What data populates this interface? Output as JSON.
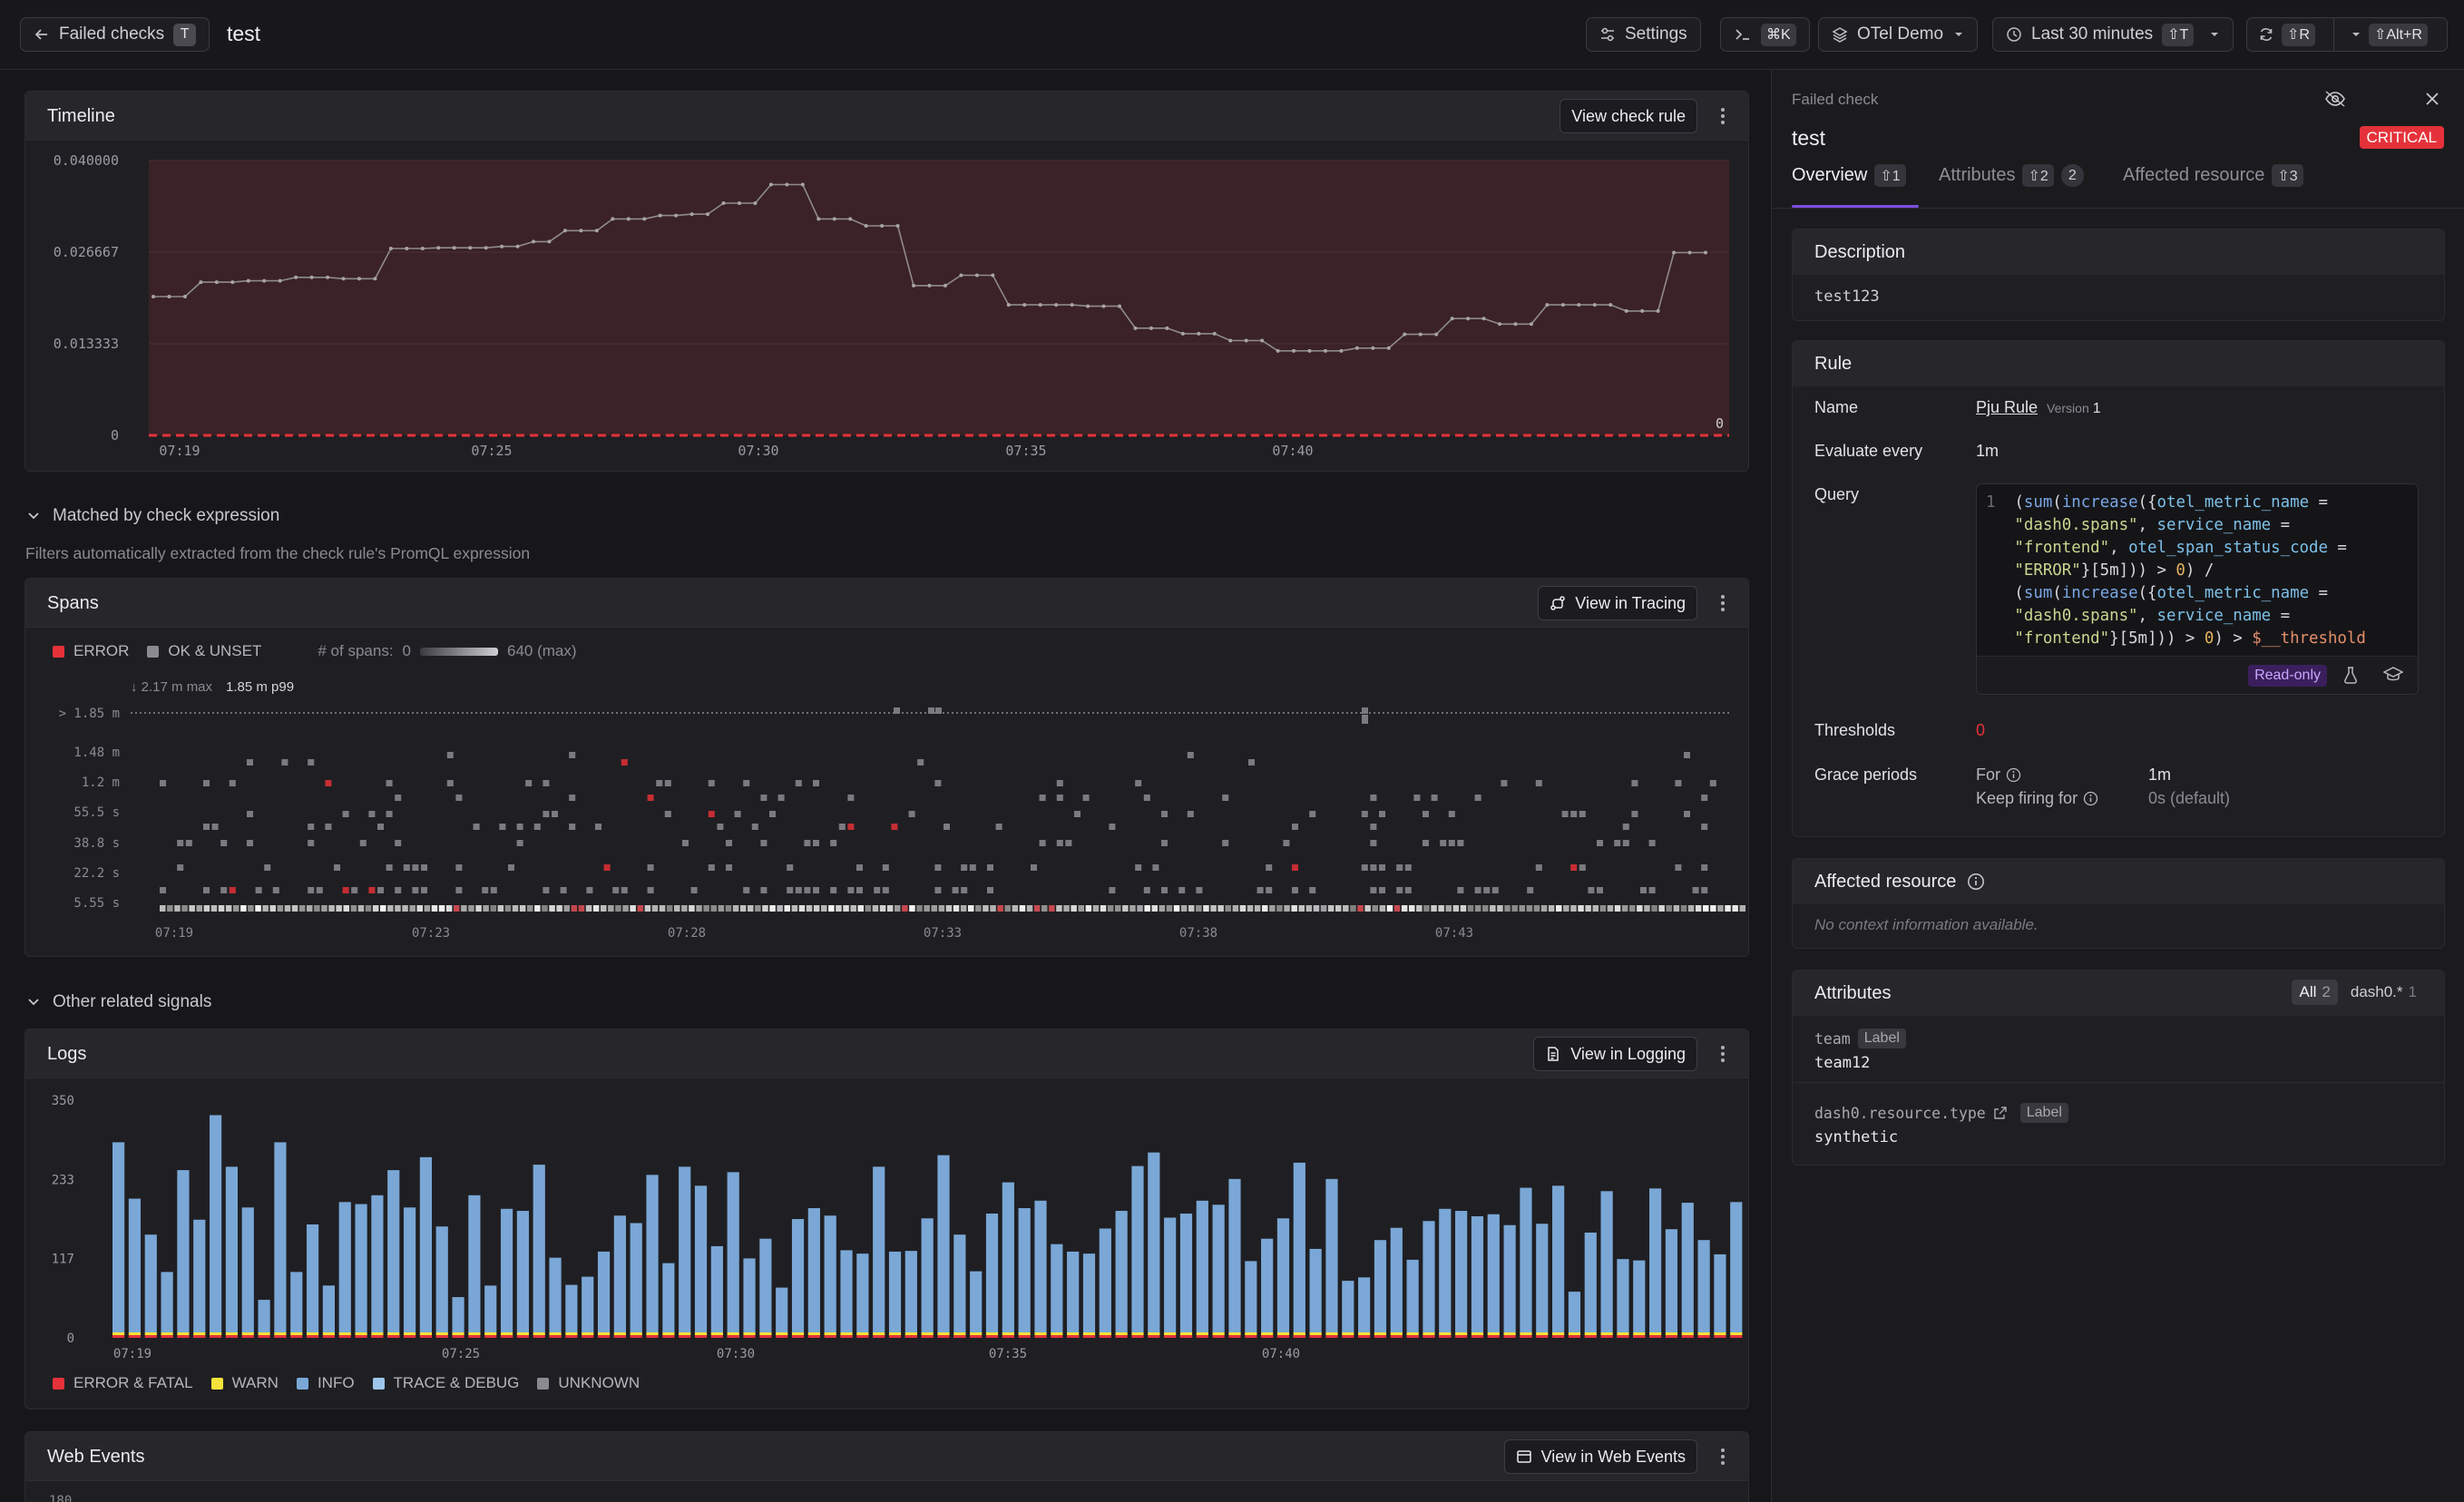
{
  "topbar": {
    "back_label": "Failed checks",
    "back_shortcut": "T",
    "page_title": "test",
    "settings_label": "Settings",
    "command_shortcut": "⌘K",
    "dataset_label": "OTel Demo",
    "time_range_label": "Last 30 minutes",
    "time_range_shortcut": "⇧T",
    "refresh_shortcut": "⇧R",
    "auto_refresh_shortcut": "⇧Alt+R"
  },
  "timeline": {
    "title": "Timeline",
    "button_label": "View check rule",
    "threshold_label": "0",
    "chart_data": {
      "type": "line",
      "title": "Timeline",
      "x_ticks": [
        "07:19",
        "07:25",
        "07:30",
        "07:35",
        "07:40"
      ],
      "y_ticks": [
        "0.040000",
        "0.026667",
        "0.013333",
        "0"
      ],
      "ylim": [
        0,
        0.04
      ],
      "threshold": 0,
      "series": [
        {
          "values": [
            0.0202,
            0.0202,
            0.0202,
            0.0223,
            0.0223,
            0.0223,
            0.0225,
            0.0225,
            0.0225,
            0.023,
            0.023,
            0.023,
            0.0228,
            0.0228,
            0.0228,
            0.0272,
            0.0272,
            0.0272,
            0.0273,
            0.0273,
            0.0273,
            0.0273,
            0.0275,
            0.0275,
            0.0282,
            0.0282,
            0.0298,
            0.0298,
            0.0298,
            0.0315,
            0.0315,
            0.0315,
            0.032,
            0.032,
            0.0322,
            0.0322,
            0.0338,
            0.0338,
            0.0338,
            0.0365,
            0.0365,
            0.0365,
            0.0315,
            0.0315,
            0.0315,
            0.0305,
            0.0305,
            0.0305,
            0.0218,
            0.0218,
            0.0218,
            0.0233,
            0.0233,
            0.0233,
            0.019,
            0.019,
            0.019,
            0.019,
            0.019,
            0.0188,
            0.0188,
            0.0188,
            0.0156,
            0.0156,
            0.0156,
            0.0148,
            0.0148,
            0.0148,
            0.0138,
            0.0138,
            0.0138,
            0.0123,
            0.0123,
            0.0123,
            0.0123,
            0.0123,
            0.0127,
            0.0127,
            0.0127,
            0.0147,
            0.0147,
            0.0147,
            0.017,
            0.017,
            0.017,
            0.0162,
            0.0162,
            0.0162,
            0.019,
            0.019,
            0.019,
            0.019,
            0.019,
            0.0181,
            0.0181,
            0.0181,
            0.0266,
            0.0266,
            0.0266
          ]
        }
      ]
    }
  },
  "matched": {
    "title": "Matched by check expression",
    "subtitle": "Filters automatically extracted from the check rule's PromQL expression"
  },
  "spans": {
    "title": "Spans",
    "button_label": "View in Tracing",
    "legend_error": "ERROR",
    "legend_ok": "OK & UNSET",
    "count_label": "# of spans:",
    "count_min": "0",
    "count_max": "640 (max)",
    "max_label": "↓ 2.17 m max",
    "p99_label": "1.85 m p99",
    "chart_data": {
      "type": "heatmap",
      "title": "Spans",
      "y_ticks": [
        "> 1.85 m",
        "1.48 m",
        "1.2 m",
        "55.5 s",
        "38.8 s",
        "22.2 s",
        "5.55 s"
      ],
      "x_ticks": [
        "07:19",
        "07:23",
        "07:28",
        "07:33",
        "07:38",
        "07:43"
      ],
      "series": [
        {
          "name": "ERROR"
        },
        {
          "name": "OK & UNSET"
        }
      ]
    }
  },
  "other": {
    "title": "Other related signals"
  },
  "logs": {
    "title": "Logs",
    "button_label": "View in Logging",
    "legend": [
      "ERROR & FATAL",
      "WARN",
      "INFO",
      "TRACE & DEBUG",
      "UNKNOWN"
    ],
    "colors": {
      "error": "#e5323a",
      "warn": "#f5e23a",
      "info": "#7aa7d6",
      "trace": "#9ec6ea",
      "unknown": "#8a8a90"
    },
    "chart_data": {
      "type": "bar",
      "title": "Logs",
      "y_ticks": [
        "350",
        "233",
        "117",
        "0"
      ],
      "x_ticks": [
        "07:19",
        "07:25",
        "07:30",
        "07:35",
        "07:40"
      ],
      "ylim": [
        0,
        350
      ],
      "series": [
        {
          "name": "INFO",
          "values": [
            288,
            205,
            152,
            97,
            247,
            174,
            328,
            252,
            192,
            56,
            288,
            97,
            167,
            77,
            200,
            197,
            210,
            247,
            192,
            266,
            164,
            60,
            210,
            77,
            190,
            187,
            255,
            118,
            78,
            90,
            127,
            180,
            169,
            240,
            110,
            252,
            224,
            135,
            244,
            117,
            146,
            74,
            175,
            191,
            180,
            129,
            124,
            252,
            127,
            128,
            176,
            269,
            152,
            98,
            183,
            229,
            191,
            202,
            138,
            127,
            124,
            161,
            187,
            253,
            273,
            177,
            183,
            202,
            196,
            234,
            113,
            146,
            176,
            258,
            131,
            234,
            84,
            89,
            144,
            162,
            115,
            172,
            190,
            187,
            179,
            182,
            166,
            221,
            168,
            224,
            68,
            155,
            216,
            116,
            114,
            220,
            160,
            199,
            144,
            123,
            200
          ]
        }
      ]
    }
  },
  "web_events": {
    "title": "Web Events",
    "button_label": "View in Web Events",
    "y_first_tick": "180"
  },
  "detail": {
    "kicker": "Failed check",
    "title": "test",
    "severity": "CRITICAL",
    "tabs": [
      {
        "label": "Overview",
        "shortcut": "⇧1"
      },
      {
        "label": "Attributes",
        "shortcut": "⇧2",
        "count": "2"
      },
      {
        "label": "Affected resource",
        "shortcut": "⇧3"
      }
    ],
    "description": {
      "title": "Description",
      "text": "test123"
    },
    "rule": {
      "title": "Rule",
      "name_key": "Name",
      "name_value": "Pju Rule",
      "version_label": "Version",
      "version_value": "1",
      "eval_key": "Evaluate every",
      "eval_value": "1m",
      "query_key": "Query",
      "query_line": "1",
      "readonly_label": "Read-only",
      "thresholds_key": "Thresholds",
      "thresholds_value": "0",
      "grace_key": "Grace periods",
      "for_label": "For",
      "for_value": "1m",
      "keep_label": "Keep firing for",
      "keep_value": "0s (default)"
    },
    "affected": {
      "title": "Affected resource",
      "empty_text": "No context information available."
    },
    "attributes": {
      "title": "Attributes",
      "filter_all": "All",
      "filter_all_count": "2",
      "filter_dash": "dash0.*",
      "filter_dash_count": "1",
      "items": [
        {
          "key": "team",
          "tag": "Label",
          "value": "team12"
        },
        {
          "key": "dash0.resource.type",
          "tag": "Label",
          "value": "synthetic"
        }
      ]
    }
  }
}
